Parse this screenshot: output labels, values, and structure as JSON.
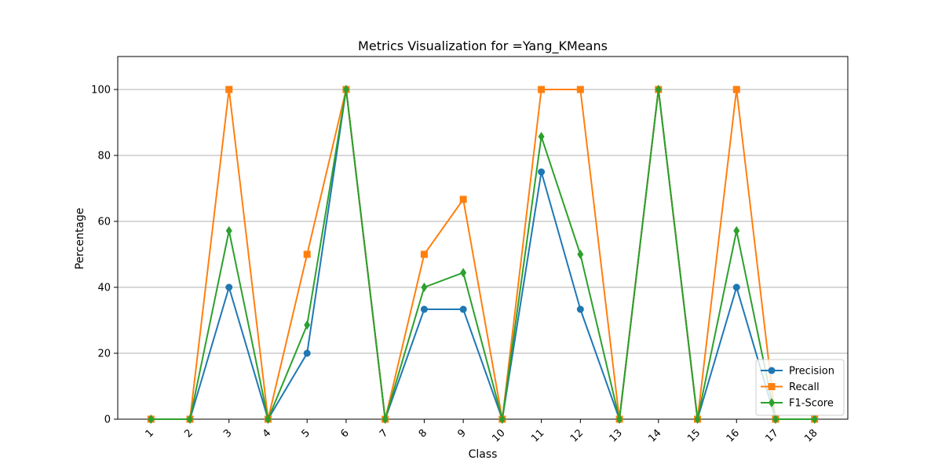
{
  "chart_data": {
    "type": "line",
    "title": "Metrics Visualization for =Yang_KMeans",
    "xlabel": "Class",
    "ylabel": "Percentage",
    "categories": [
      "1",
      "2",
      "3",
      "4",
      "5",
      "6",
      "7",
      "8",
      "9",
      "10",
      "11",
      "12",
      "13",
      "14",
      "15",
      "16",
      "17",
      "18"
    ],
    "ylim": [
      0,
      110
    ],
    "yticks": [
      0,
      20,
      40,
      60,
      80,
      100
    ],
    "grid": "horizontal",
    "legend_position": "lower-right",
    "series": [
      {
        "name": "Precision",
        "color": "#1f77b4",
        "marker": "circle",
        "values": [
          0,
          0,
          40,
          0,
          20,
          100,
          0,
          33.33,
          33.33,
          0,
          75,
          33.33,
          0,
          100,
          0,
          40,
          0,
          0
        ]
      },
      {
        "name": "Recall",
        "color": "#ff7f0e",
        "marker": "square",
        "values": [
          0,
          0,
          100,
          0,
          50,
          100,
          0,
          50,
          66.67,
          0,
          100,
          100,
          0,
          100,
          0,
          100,
          0,
          0
        ]
      },
      {
        "name": "F1-Score",
        "color": "#2ca02c",
        "marker": "diamond",
        "values": [
          0,
          0,
          57.14,
          0,
          28.57,
          100,
          0,
          40,
          44.44,
          0,
          85.71,
          50,
          0,
          100,
          0,
          57.14,
          0,
          0
        ]
      }
    ]
  }
}
